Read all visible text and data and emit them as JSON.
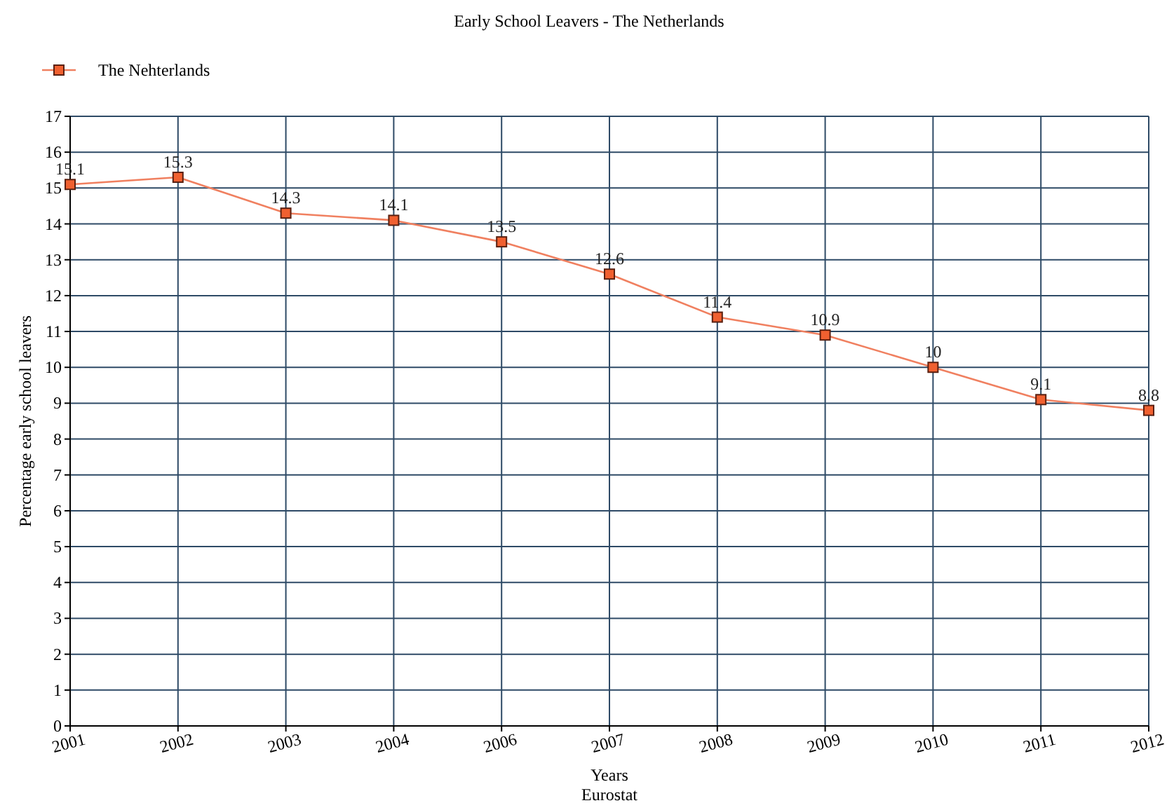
{
  "chart_data": {
    "type": "line",
    "title": "Early School Leavers - The Netherlands",
    "xlabel": "Years",
    "ylabel": "Percentage early school leavers",
    "annotations": [
      "Eurostat"
    ],
    "categories": [
      "2001",
      "2002",
      "2003",
      "2004",
      "2006",
      "2007",
      "2008",
      "2009",
      "2010",
      "2011",
      "2012"
    ],
    "series": [
      {
        "name": "The Nehterlands",
        "color": "#f08060",
        "values": [
          15.1,
          15.3,
          14.3,
          14.1,
          13.5,
          12.6,
          11.4,
          10.9,
          10,
          9.1,
          8.8
        ]
      }
    ],
    "ylim": [
      0,
      17
    ],
    "yticks": [
      0,
      1,
      2,
      3,
      4,
      5,
      6,
      7,
      8,
      9,
      10,
      11,
      12,
      13,
      14,
      15,
      16,
      17
    ],
    "grid": true,
    "legend": "top left",
    "marker": "square",
    "line_style": "solid",
    "data_labels": true
  }
}
